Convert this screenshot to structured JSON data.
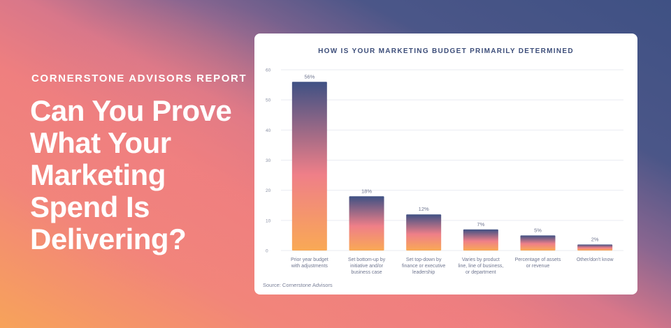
{
  "hero": {
    "eyebrow": "CORNERSTONE ADVISORS REPORT",
    "headline": "Can You Prove What Your Marketing Spend Is Delivering?"
  },
  "colors": {
    "bar_top": "#3f5184",
    "bar_mid": "#ef7f88",
    "bar_bottom": "#f9a955",
    "grid": "#e9ebf2",
    "title": "#3d4e7a"
  },
  "chart_data": {
    "type": "bar",
    "title": "HOW IS YOUR MARKETING BUDGET PRIMARILY DETERMINED",
    "categories": [
      [
        "Prior year budget",
        "with adjustments"
      ],
      [
        "Set bottom-up by",
        "initiative and/or",
        "business case"
      ],
      [
        "Set top-down by",
        "finance or executive",
        "leadership"
      ],
      [
        "Varies by product",
        "line, line of business,",
        "or department"
      ],
      [
        "Percentage of assets",
        "or revenue"
      ],
      [
        "Other/don't know"
      ]
    ],
    "values": [
      56,
      18,
      12,
      7,
      5,
      2
    ],
    "data_labels": [
      "56%",
      "18%",
      "12%",
      "7%",
      "5%",
      "2%"
    ],
    "ylim": [
      0,
      60
    ],
    "yticks": [
      0,
      10,
      20,
      30,
      40,
      50,
      60
    ],
    "grid": true,
    "xlabel": "",
    "ylabel": "",
    "source": "Source: Cornerstone Advisors"
  }
}
